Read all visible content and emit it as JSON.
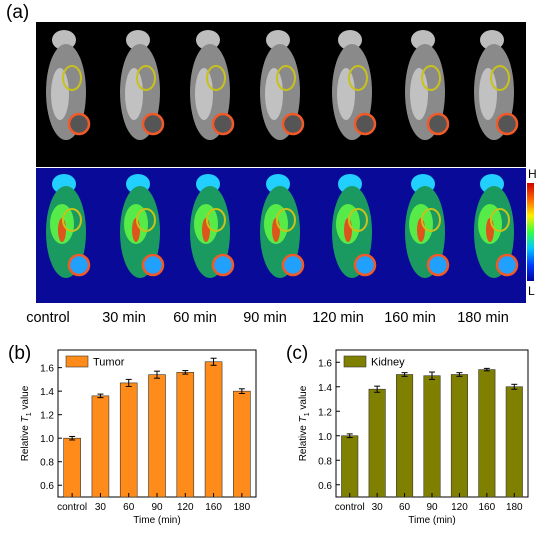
{
  "panel_labels": {
    "a": "(a)",
    "b": "(b)",
    "c": "(c)"
  },
  "image_panel": {
    "timepoints": [
      "control",
      "30 min",
      "60 min",
      "90 min",
      "120 min",
      "160 min",
      "180 min"
    ],
    "colorbar": {
      "high": "H",
      "low": "L"
    },
    "roi_colors": {
      "kidney": "#c9c21a",
      "tumor": "#f05a28"
    }
  },
  "chart_data": [
    {
      "type": "bar",
      "panel": "b",
      "categories": [
        "control",
        "30",
        "60",
        "90",
        "120",
        "160",
        "180"
      ],
      "series": [
        {
          "name": "Tumor",
          "values": [
            1.0,
            1.36,
            1.47,
            1.54,
            1.56,
            1.65,
            1.4
          ],
          "errors": [
            0.015,
            0.015,
            0.03,
            0.03,
            0.015,
            0.03,
            0.02
          ],
          "color": "#ff8c1a"
        }
      ],
      "xlabel": "Time (min)",
      "ylabel": "Relative T1 value",
      "ylim": [
        0.5,
        1.75
      ],
      "yticks": [
        0.6,
        0.8,
        1.0,
        1.2,
        1.4,
        1.6
      ],
      "legend": "top-left"
    },
    {
      "type": "bar",
      "panel": "c",
      "categories": [
        "control",
        "30",
        "60",
        "90",
        "120",
        "160",
        "180"
      ],
      "series": [
        {
          "name": "Kidney",
          "values": [
            1.0,
            1.38,
            1.5,
            1.49,
            1.5,
            1.54,
            1.4
          ],
          "errors": [
            0.015,
            0.025,
            0.015,
            0.03,
            0.015,
            0.01,
            0.02
          ],
          "color": "#808000"
        }
      ],
      "xlabel": "Time (min)",
      "ylabel": "Relative T1 value",
      "ylim": [
        0.5,
        1.7
      ],
      "yticks": [
        0.6,
        0.8,
        1.0,
        1.2,
        1.4,
        1.6
      ],
      "legend": "top-left"
    }
  ]
}
